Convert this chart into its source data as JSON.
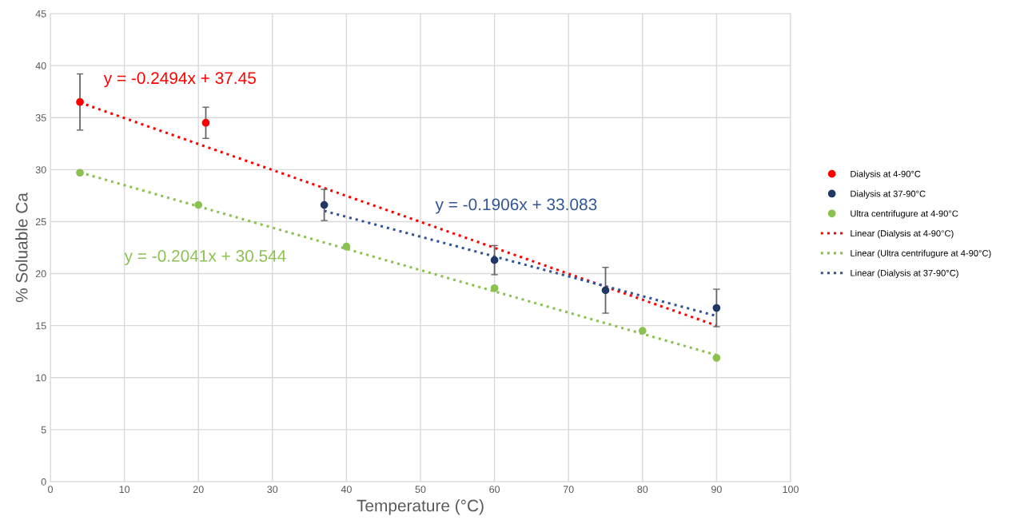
{
  "chart_data": {
    "type": "scatter",
    "xlabel": "Temperature (°C)",
    "ylabel": "% Soluable Ca",
    "xlim": [
      0,
      100
    ],
    "xticks": [
      0,
      10,
      20,
      30,
      40,
      50,
      60,
      70,
      80,
      90,
      100
    ],
    "ylim": [
      0,
      45
    ],
    "yticks": [
      0,
      5,
      10,
      15,
      20,
      25,
      30,
      35,
      40,
      45
    ],
    "grid": true,
    "legend": "right",
    "marker": "circle",
    "series": [
      {
        "name": "Dialysis at 4-90°C",
        "color": "#ff0000",
        "x": [
          4,
          21
        ],
        "values": [
          36.5,
          34.5
        ],
        "errors": [
          2.7,
          1.5
        ]
      },
      {
        "name": "Dialysis at 37-90°C",
        "color": "#1f3864",
        "x": [
          37,
          60,
          75,
          90
        ],
        "values": [
          26.6,
          21.3,
          18.4,
          16.7
        ],
        "errors": [
          1.5,
          1.4,
          2.2,
          1.8
        ]
      },
      {
        "name": "Ultra centrifugure at 4-90°C",
        "color": "#8cc152",
        "x": [
          4,
          20,
          40,
          60,
          80,
          90
        ],
        "values": [
          29.7,
          26.6,
          22.6,
          18.6,
          14.5,
          11.9
        ]
      },
      {
        "name": "Linear (Dialysis at 4-90°C)",
        "type": "line",
        "line_style": "dotted",
        "marker": "none",
        "color": "#ff0000",
        "x": [
          4,
          90
        ],
        "values": [
          36.45,
          15.0
        ]
      },
      {
        "name": "Linear (Ultra centrifugure at 4-90°C)",
        "type": "line",
        "line_style": "dotted",
        "marker": "none",
        "color": "#8cc152",
        "x": [
          4,
          90
        ],
        "values": [
          29.73,
          12.17
        ]
      },
      {
        "name": "Linear (Dialysis at 37-90°C)",
        "type": "line",
        "line_style": "dotted",
        "marker": "none",
        "color": "#2f5597",
        "x": [
          37,
          90
        ],
        "values": [
          26.03,
          15.93
        ]
      }
    ],
    "annotations": [
      "y = -0.2494x + 37.45",
      "y = -0.1906x + 33.083",
      "y = -0.2041x + 30.544"
    ]
  }
}
